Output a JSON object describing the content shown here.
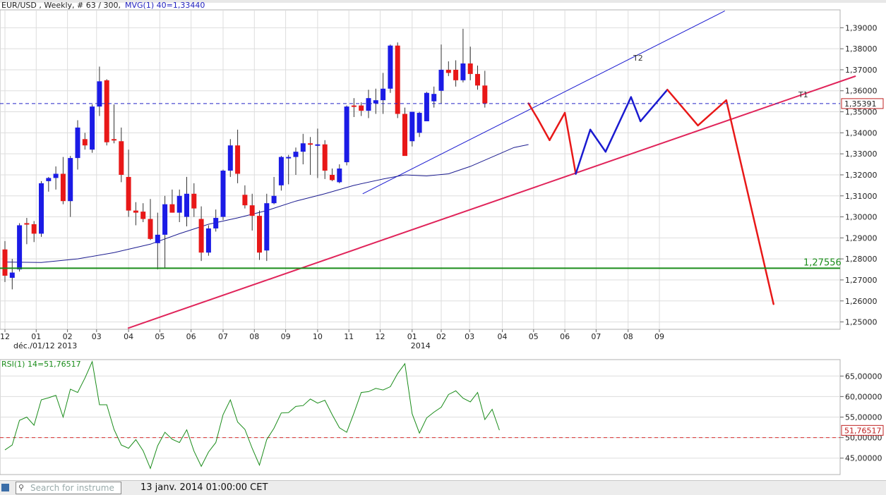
{
  "header": {
    "title": "EUR/USD , Weekly, # 63 / 300,",
    "indicator": "MVG(1) 40=1,33440"
  },
  "chart_data": [
    {
      "type": "candlestick",
      "title": "EUR/USD , Weekly, # 63 / 300,",
      "y_ticks": [
        "1,39000",
        "1,38000",
        "1,37000",
        "1,36000",
        "1,35000",
        "1,34000",
        "1,33000",
        "1,32000",
        "1,31000",
        "1,30000",
        "1,29000",
        "1,28000",
        "1,27000",
        "1,26000",
        "1,25000"
      ],
      "y_range": [
        1.2465,
        1.3985
      ],
      "x_ticks": [
        "12",
        "01",
        "02",
        "03",
        "04",
        "05",
        "06",
        "07",
        "08",
        "09",
        "10",
        "11",
        "12",
        "01",
        "02",
        "03",
        "04",
        "05",
        "06",
        "07",
        "08",
        "09"
      ],
      "x_tick_weeks": [
        0,
        4.3,
        8.6,
        12.6,
        17,
        21.3,
        25.6,
        30,
        34.3,
        38.6,
        43,
        47.3,
        51.6,
        56,
        60,
        63.9,
        68.4,
        72.7,
        77,
        81.3,
        85.7,
        90
      ],
      "x_sublabels": [
        {
          "label": "déc./01/12 2013",
          "week": 0
        },
        {
          "label": "2014",
          "week": 56
        }
      ],
      "candles": [
        {
          "o": 1.2845,
          "h": 1.2885,
          "l": 1.269,
          "c": 1.272
        },
        {
          "o": 1.271,
          "h": 1.28,
          "l": 1.2655,
          "c": 1.2735
        },
        {
          "o": 1.275,
          "h": 1.297,
          "l": 1.274,
          "c": 1.296
        },
        {
          "o": 1.297,
          "h": 1.2995,
          "l": 1.287,
          "c": 1.2965
        },
        {
          "o": 1.2965,
          "h": 1.298,
          "l": 1.288,
          "c": 1.292
        },
        {
          "o": 1.292,
          "h": 1.317,
          "l": 1.2905,
          "c": 1.316
        },
        {
          "o": 1.317,
          "h": 1.319,
          "l": 1.312,
          "c": 1.3185
        },
        {
          "o": 1.3185,
          "h": 1.324,
          "l": 1.313,
          "c": 1.3205
        },
        {
          "o": 1.3205,
          "h": 1.3285,
          "l": 1.306,
          "c": 1.3075
        },
        {
          "o": 1.3075,
          "h": 1.329,
          "l": 1.3,
          "c": 1.328
        },
        {
          "o": 1.328,
          "h": 1.346,
          "l": 1.3225,
          "c": 1.3425
        },
        {
          "o": 1.337,
          "h": 1.34,
          "l": 1.332,
          "c": 1.334
        },
        {
          "o": 1.332,
          "h": 1.3535,
          "l": 1.3305,
          "c": 1.3525
        },
        {
          "o": 1.3525,
          "h": 1.3715,
          "l": 1.348,
          "c": 1.3645
        },
        {
          "o": 1.365,
          "h": 1.3655,
          "l": 1.334,
          "c": 1.3355
        },
        {
          "o": 1.337,
          "h": 1.3535,
          "l": 1.335,
          "c": 1.3365
        },
        {
          "o": 1.336,
          "h": 1.3425,
          "l": 1.3165,
          "c": 1.32
        },
        {
          "o": 1.319,
          "h": 1.332,
          "l": 1.3,
          "c": 1.303
        },
        {
          "o": 1.303,
          "h": 1.307,
          "l": 1.296,
          "c": 1.302
        },
        {
          "o": 1.3025,
          "h": 1.3065,
          "l": 1.2975,
          "c": 1.299
        },
        {
          "o": 1.299,
          "h": 1.3085,
          "l": 1.289,
          "c": 1.2895
        },
        {
          "o": 1.2875,
          "h": 1.302,
          "l": 1.275,
          "c": 1.2915
        },
        {
          "o": 1.2915,
          "h": 1.31,
          "l": 1.2755,
          "c": 1.306
        },
        {
          "o": 1.306,
          "h": 1.313,
          "l": 1.302,
          "c": 1.302
        },
        {
          "o": 1.302,
          "h": 1.313,
          "l": 1.2975,
          "c": 1.31
        },
        {
          "o": 1.3,
          "h": 1.319,
          "l": 1.2955,
          "c": 1.311
        },
        {
          "o": 1.311,
          "h": 1.316,
          "l": 1.3,
          "c": 1.304
        },
        {
          "o": 1.299,
          "h": 1.305,
          "l": 1.279,
          "c": 1.283
        },
        {
          "o": 1.283,
          "h": 1.296,
          "l": 1.2815,
          "c": 1.2945
        },
        {
          "o": 1.2945,
          "h": 1.3035,
          "l": 1.293,
          "c": 1.2995
        },
        {
          "o": 1.3,
          "h": 1.3225,
          "l": 1.2985,
          "c": 1.322
        },
        {
          "o": 1.322,
          "h": 1.337,
          "l": 1.319,
          "c": 1.334
        },
        {
          "o": 1.334,
          "h": 1.3415,
          "l": 1.316,
          "c": 1.3205
        },
        {
          "o": 1.3105,
          "h": 1.315,
          "l": 1.304,
          "c": 1.3055
        },
        {
          "o": 1.3055,
          "h": 1.311,
          "l": 1.2935,
          "c": 1.3005
        },
        {
          "o": 1.3005,
          "h": 1.303,
          "l": 1.2795,
          "c": 1.283
        },
        {
          "o": 1.284,
          "h": 1.311,
          "l": 1.279,
          "c": 1.3065
        },
        {
          "o": 1.3065,
          "h": 1.319,
          "l": 1.306,
          "c": 1.31
        },
        {
          "o": 1.315,
          "h": 1.329,
          "l": 1.3125,
          "c": 1.3285
        },
        {
          "o": 1.3285,
          "h": 1.3295,
          "l": 1.3155,
          "c": 1.3285
        },
        {
          "o": 1.3285,
          "h": 1.333,
          "l": 1.32,
          "c": 1.331
        },
        {
          "o": 1.331,
          "h": 1.3395,
          "l": 1.325,
          "c": 1.335
        },
        {
          "o": 1.335,
          "h": 1.338,
          "l": 1.32,
          "c": 1.3345
        },
        {
          "o": 1.334,
          "h": 1.342,
          "l": 1.3185,
          "c": 1.3345
        },
        {
          "o": 1.3345,
          "h": 1.3365,
          "l": 1.318,
          "c": 1.322
        },
        {
          "o": 1.32,
          "h": 1.323,
          "l": 1.317,
          "c": 1.3175
        },
        {
          "o": 1.3165,
          "h": 1.325,
          "l": 1.316,
          "c": 1.323
        },
        {
          "o": 1.326,
          "h": 1.353,
          "l": 1.3245,
          "c": 1.3525
        },
        {
          "o": 1.353,
          "h": 1.3565,
          "l": 1.3475,
          "c": 1.3525
        },
        {
          "o": 1.353,
          "h": 1.3545,
          "l": 1.348,
          "c": 1.3505
        },
        {
          "o": 1.3505,
          "h": 1.3605,
          "l": 1.347,
          "c": 1.3565
        },
        {
          "o": 1.354,
          "h": 1.361,
          "l": 1.349,
          "c": 1.3555
        },
        {
          "o": 1.3555,
          "h": 1.3685,
          "l": 1.349,
          "c": 1.361
        },
        {
          "o": 1.361,
          "h": 1.382,
          "l": 1.359,
          "c": 1.3815
        },
        {
          "o": 1.3815,
          "h": 1.383,
          "l": 1.347,
          "c": 1.349
        },
        {
          "o": 1.349,
          "h": 1.352,
          "l": 1.33,
          "c": 1.329
        },
        {
          "o": 1.336,
          "h": 1.35,
          "l": 1.3335,
          "c": 1.35
        },
        {
          "o": 1.34,
          "h": 1.35,
          "l": 1.338,
          "c": 1.3495
        },
        {
          "o": 1.3455,
          "h": 1.3595,
          "l": 1.3455,
          "c": 1.359
        },
        {
          "o": 1.355,
          "h": 1.362,
          "l": 1.352,
          "c": 1.3585
        },
        {
          "o": 1.36,
          "h": 1.382,
          "l": 1.354,
          "c": 1.37
        },
        {
          "o": 1.37,
          "h": 1.374,
          "l": 1.367,
          "c": 1.3685
        },
        {
          "o": 1.37,
          "h": 1.3745,
          "l": 1.362,
          "c": 1.365
        },
        {
          "o": 1.365,
          "h": 1.3895,
          "l": 1.364,
          "c": 1.373
        },
        {
          "o": 1.373,
          "h": 1.381,
          "l": 1.365,
          "c": 1.368
        },
        {
          "o": 1.368,
          "h": 1.372,
          "l": 1.3605,
          "c": 1.3625
        },
        {
          "o": 1.3625,
          "h": 1.3695,
          "l": 1.352,
          "c": 1.354
        }
      ],
      "moving_average": {
        "label": "MVG(1) 40=1,33440",
        "color": "#1b1b8f",
        "values": [
          [
            0,
            1.2785
          ],
          [
            5,
            1.2783
          ],
          [
            10,
            1.28
          ],
          [
            15,
            1.283
          ],
          [
            20,
            1.287
          ],
          [
            24,
            1.292
          ],
          [
            28,
            1.2965
          ],
          [
            32,
            1.2995
          ],
          [
            36,
            1.303
          ],
          [
            40,
            1.3075
          ],
          [
            44,
            1.311
          ],
          [
            48,
            1.315
          ],
          [
            52,
            1.318
          ],
          [
            55,
            1.32
          ],
          [
            58,
            1.3195
          ],
          [
            61,
            1.3205
          ],
          [
            64,
            1.324
          ],
          [
            68,
            1.33
          ],
          [
            70,
            1.333
          ],
          [
            72,
            1.3344
          ]
        ]
      },
      "horizontal_lines": [
        {
          "value": 1.27556,
          "label": "1,27556",
          "color": "#1a8c1a",
          "style": "solid"
        },
        {
          "value": 1.35391,
          "label": "1,35391",
          "color": "#2424c8",
          "style": "dashed"
        }
      ],
      "trendlines": [
        {
          "label": "T1",
          "color": "#e0245a",
          "from": [
            16.9,
            1.247
          ],
          "to": [
            117,
            1.367
          ]
        },
        {
          "label": "T2",
          "color": "#1a1ad0",
          "from": [
            49.2,
            1.311
          ],
          "to": [
            99,
            1.398
          ]
        }
      ],
      "projection": {
        "points": [
          [
            72,
            1.354
          ],
          [
            73.3,
            1.3465
          ],
          [
            74.9,
            1.3365
          ],
          [
            77,
            1.3495
          ],
          [
            78.5,
            1.3205
          ],
          [
            80.5,
            1.3415
          ],
          [
            82.6,
            1.331
          ],
          [
            86.1,
            1.357
          ],
          [
            87.4,
            1.3455
          ],
          [
            91.1,
            1.3605
          ],
          [
            95.3,
            1.3435
          ],
          [
            99.2,
            1.3555
          ],
          [
            105.7,
            1.2585
          ]
        ],
        "colors": [
          "#e81818",
          "#e81818",
          "#e81818",
          "#e81818",
          "#1a1ad0",
          "#1a1ad0",
          "#1a1ad0",
          "#1a1ad0",
          "#1a1ad0",
          "#e81818",
          "#e81818",
          "#e81818"
        ]
      },
      "annotations": [
        {
          "text": "T1"
        },
        {
          "text": "T2"
        }
      ]
    },
    {
      "type": "line",
      "title": "RSI(1) 14=51,76517",
      "y_ticks": [
        "65,00000",
        "60,00000",
        "55,00000",
        "50,00000",
        "45,00000"
      ],
      "y_range": [
        41.0,
        69.0
      ],
      "current": "51,76517",
      "reference_line": {
        "value": 50,
        "color": "#d83030"
      },
      "values": [
        47.0,
        48.2,
        54.2,
        55.0,
        53.0,
        59.2,
        59.7,
        60.3,
        55.0,
        61.8,
        61.0,
        64.5,
        68.5,
        58.0,
        58.0,
        52.0,
        48.2,
        47.4,
        49.5,
        46.8,
        42.5,
        48.0,
        51.3,
        49.6,
        48.8,
        51.9,
        46.7,
        43.0,
        46.5,
        48.8,
        55.6,
        59.2,
        53.8,
        52.0,
        47.4,
        43.3,
        49.5,
        52.3,
        56.0,
        56.1,
        57.6,
        57.8,
        59.4,
        58.4,
        59.1,
        55.6,
        52.4,
        51.3,
        56.0,
        61.0,
        61.2,
        62.0,
        61.6,
        62.4,
        65.6,
        68.0,
        55.8,
        51.1,
        54.8,
        56.2,
        57.4,
        60.5,
        61.4,
        59.6,
        58.7,
        61.0,
        54.4,
        56.9,
        51.8
      ]
    }
  ],
  "status": {
    "datetime": "13 janv. 2014 01:00:00 CET",
    "search_placeholder": "Search for instrume",
    "search_icon": "magnifier-icon"
  }
}
